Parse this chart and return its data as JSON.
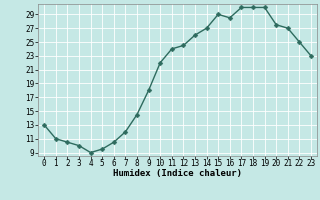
{
  "x": [
    0,
    1,
    2,
    3,
    4,
    5,
    6,
    7,
    8,
    9,
    10,
    11,
    12,
    13,
    14,
    15,
    16,
    17,
    18,
    19,
    20,
    21,
    22,
    23
  ],
  "y": [
    13,
    11,
    10.5,
    10,
    9,
    9.5,
    10.5,
    12,
    14.5,
    18,
    22,
    24,
    24.5,
    26,
    27,
    29,
    28.5,
    30,
    30,
    30,
    27.5,
    27,
    25,
    23
  ],
  "line_color": "#2e6b5e",
  "marker_color": "#2e6b5e",
  "bg_color": "#c5e8e5",
  "grid_color": "#ffffff",
  "xlabel": "Humidex (Indice chaleur)",
  "xlim": [
    -0.5,
    23.5
  ],
  "ylim": [
    8.5,
    30.5
  ],
  "yticks": [
    9,
    11,
    13,
    15,
    17,
    19,
    21,
    23,
    25,
    27,
    29
  ],
  "xticks": [
    0,
    1,
    2,
    3,
    4,
    5,
    6,
    7,
    8,
    9,
    10,
    11,
    12,
    13,
    14,
    15,
    16,
    17,
    18,
    19,
    20,
    21,
    22,
    23
  ],
  "tick_fontsize": 5.5,
  "xlabel_fontsize": 6.5,
  "marker_size": 2.5,
  "line_width": 1.0
}
